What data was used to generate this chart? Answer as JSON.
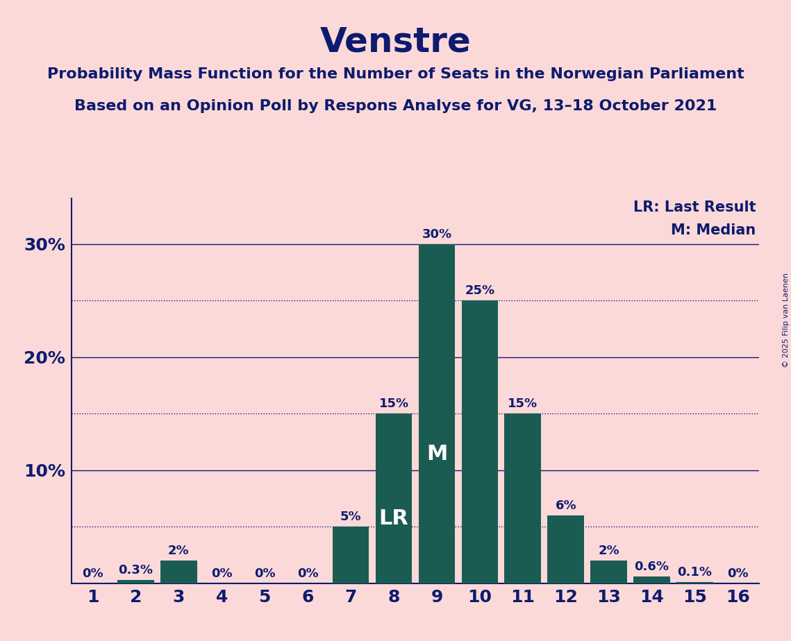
{
  "title": "Venstre",
  "subtitle1": "Probability Mass Function for the Number of Seats in the Norwegian Parliament",
  "subtitle2": "Based on an Opinion Poll by Respons Analyse for VG, 13–18 October 2021",
  "copyright": "© 2025 Filip van Laenen",
  "categories": [
    1,
    2,
    3,
    4,
    5,
    6,
    7,
    8,
    9,
    10,
    11,
    12,
    13,
    14,
    15,
    16
  ],
  "values": [
    0.0,
    0.3,
    2.0,
    0.0,
    0.0,
    0.0,
    5.0,
    15.0,
    30.0,
    25.0,
    15.0,
    6.0,
    2.0,
    0.6,
    0.1,
    0.0
  ],
  "bar_color": "#1a5c52",
  "background_color": "#fcd9d9",
  "text_color": "#0d1b6e",
  "bar_labels": [
    "0%",
    "0.3%",
    "2%",
    "0%",
    "0%",
    "0%",
    "5%",
    "15%",
    "30%",
    "25%",
    "15%",
    "6%",
    "2%",
    "0.6%",
    "0.1%",
    "0%"
  ],
  "LR_seat": 8,
  "Median_seat": 9,
  "legend_lr": "LR: Last Result",
  "legend_m": "M: Median",
  "ylabel_ticks": [
    10,
    20,
    30
  ],
  "ylabel_labels": [
    "10%",
    "20%",
    "30%"
  ],
  "dotted_ticks": [
    5,
    15,
    25
  ],
  "solid_ticks": [
    10,
    20,
    30
  ],
  "xlim": [
    0.5,
    16.5
  ],
  "ylim": [
    0,
    34
  ],
  "title_fontsize": 36,
  "subtitle_fontsize": 16,
  "tick_label_fontsize": 18,
  "bar_label_fontsize": 13,
  "lr_m_fontsize": 22,
  "legend_fontsize": 15
}
